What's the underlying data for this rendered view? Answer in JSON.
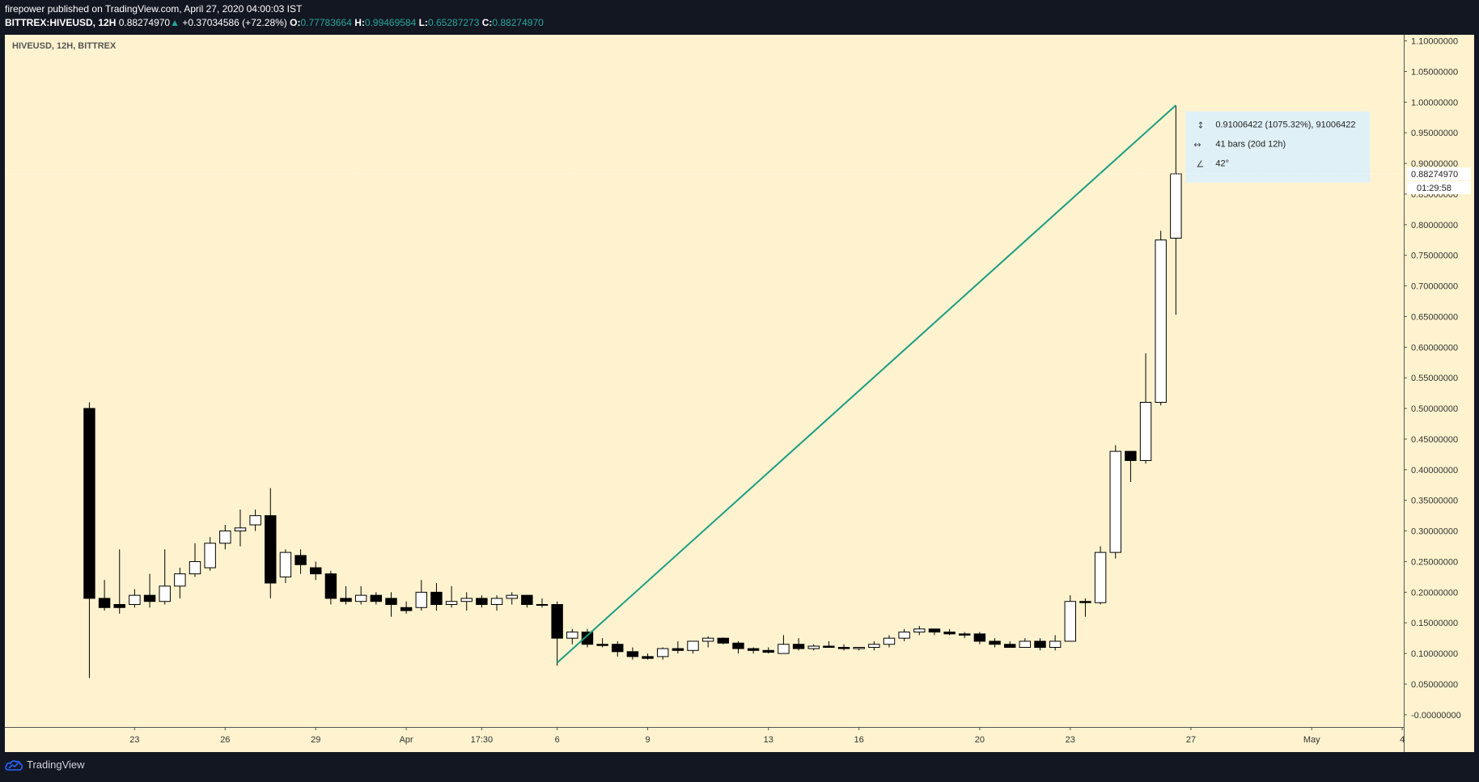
{
  "header": {
    "publisher_line": "firepower published on TradingView.com, April 27, 2020 04:00:03 IST",
    "symbol": "BITTREX:HIVEUSD, 12H",
    "last": "0.88274970",
    "change": "+0.37034586 (+72.28%)",
    "o_label": "O:",
    "o_value": "0.77783664",
    "h_label": "H:",
    "h_value": "0.99469584",
    "l_label": "L:",
    "l_value": "0.65287273",
    "c_label": "C:",
    "c_value": "0.88274970"
  },
  "chart_data": {
    "type": "candlestick",
    "title": "HIVEUSD, 12H, BITTREX",
    "ylim": [
      -0.02,
      1.11
    ],
    "y_ticks": [
      "1.10000000",
      "1.05000000",
      "1.00000000",
      "0.95000000",
      "0.90000000",
      "0.85000000",
      "0.80000000",
      "0.75000000",
      "0.70000000",
      "0.65000000",
      "0.60000000",
      "0.55000000",
      "0.50000000",
      "0.45000000",
      "0.40000000",
      "0.35000000",
      "0.30000000",
      "0.25000000",
      "0.20000000",
      "0.15000000",
      "0.10000000",
      "0.05000000",
      "-0.00000000"
    ],
    "y_tick_values": [
      1.1,
      1.05,
      1.0,
      0.95,
      0.9,
      0.85,
      0.8,
      0.75,
      0.7,
      0.65,
      0.6,
      0.55,
      0.5,
      0.45,
      0.4,
      0.35,
      0.3,
      0.25,
      0.2,
      0.15,
      0.1,
      0.05,
      0.0
    ],
    "x_ticks": [
      {
        "label": "23",
        "bar": 3
      },
      {
        "label": "26",
        "bar": 9
      },
      {
        "label": "29",
        "bar": 15
      },
      {
        "label": "Apr",
        "bar": 21
      },
      {
        "label": "17:30",
        "bar": 26
      },
      {
        "label": "6",
        "bar": 31
      },
      {
        "label": "9",
        "bar": 37
      },
      {
        "label": "13",
        "bar": 45
      },
      {
        "label": "16",
        "bar": 51
      },
      {
        "label": "20",
        "bar": 59
      },
      {
        "label": "23",
        "bar": 65
      },
      {
        "label": "27",
        "bar": 73
      },
      {
        "label": "May",
        "bar": 81
      },
      {
        "label": "4",
        "bar": 87
      }
    ],
    "bar_range": [
      -5.6,
      87.1
    ],
    "candles": [
      [
        0.5,
        0.51,
        0.06,
        0.19
      ],
      [
        0.19,
        0.22,
        0.17,
        0.175
      ],
      [
        0.18,
        0.27,
        0.165,
        0.175
      ],
      [
        0.18,
        0.205,
        0.175,
        0.195
      ],
      [
        0.195,
        0.23,
        0.175,
        0.185
      ],
      [
        0.185,
        0.27,
        0.18,
        0.21
      ],
      [
        0.21,
        0.24,
        0.19,
        0.23
      ],
      [
        0.23,
        0.28,
        0.225,
        0.25
      ],
      [
        0.24,
        0.29,
        0.235,
        0.28
      ],
      [
        0.28,
        0.31,
        0.27,
        0.3
      ],
      [
        0.3,
        0.335,
        0.275,
        0.305
      ],
      [
        0.31,
        0.335,
        0.3,
        0.325
      ],
      [
        0.325,
        0.37,
        0.19,
        0.215
      ],
      [
        0.225,
        0.27,
        0.215,
        0.265
      ],
      [
        0.26,
        0.27,
        0.23,
        0.245
      ],
      [
        0.24,
        0.25,
        0.22,
        0.23
      ],
      [
        0.23,
        0.235,
        0.18,
        0.19
      ],
      [
        0.19,
        0.21,
        0.18,
        0.185
      ],
      [
        0.185,
        0.21,
        0.18,
        0.195
      ],
      [
        0.195,
        0.2,
        0.18,
        0.185
      ],
      [
        0.19,
        0.2,
        0.16,
        0.18
      ],
      [
        0.175,
        0.185,
        0.165,
        0.17
      ],
      [
        0.175,
        0.22,
        0.17,
        0.2
      ],
      [
        0.2,
        0.215,
        0.17,
        0.18
      ],
      [
        0.18,
        0.21,
        0.175,
        0.185
      ],
      [
        0.185,
        0.2,
        0.17,
        0.19
      ],
      [
        0.19,
        0.195,
        0.175,
        0.18
      ],
      [
        0.18,
        0.195,
        0.17,
        0.19
      ],
      [
        0.19,
        0.2,
        0.18,
        0.195
      ],
      [
        0.195,
        0.195,
        0.175,
        0.18
      ],
      [
        0.18,
        0.19,
        0.175,
        0.18
      ],
      [
        0.18,
        0.185,
        0.08,
        0.125
      ],
      [
        0.125,
        0.14,
        0.115,
        0.135
      ],
      [
        0.135,
        0.14,
        0.11,
        0.115
      ],
      [
        0.115,
        0.125,
        0.11,
        0.113
      ],
      [
        0.115,
        0.12,
        0.095,
        0.103
      ],
      [
        0.103,
        0.11,
        0.09,
        0.095
      ],
      [
        0.095,
        0.1,
        0.09,
        0.092
      ],
      [
        0.095,
        0.11,
        0.09,
        0.108
      ],
      [
        0.108,
        0.12,
        0.1,
        0.105
      ],
      [
        0.105,
        0.12,
        0.1,
        0.12
      ],
      [
        0.12,
        0.128,
        0.11,
        0.125
      ],
      [
        0.125,
        0.126,
        0.115,
        0.117
      ],
      [
        0.117,
        0.12,
        0.1,
        0.108
      ],
      [
        0.108,
        0.11,
        0.1,
        0.105
      ],
      [
        0.105,
        0.11,
        0.1,
        0.102
      ],
      [
        0.1,
        0.13,
        0.1,
        0.115
      ],
      [
        0.115,
        0.125,
        0.105,
        0.108
      ],
      [
        0.108,
        0.115,
        0.105,
        0.112
      ],
      [
        0.112,
        0.12,
        0.11,
        0.11
      ],
      [
        0.11,
        0.115,
        0.105,
        0.108
      ],
      [
        0.108,
        0.11,
        0.105,
        0.11
      ],
      [
        0.11,
        0.12,
        0.105,
        0.115
      ],
      [
        0.115,
        0.13,
        0.11,
        0.125
      ],
      [
        0.125,
        0.14,
        0.12,
        0.135
      ],
      [
        0.135,
        0.145,
        0.13,
        0.14
      ],
      [
        0.14,
        0.14,
        0.13,
        0.135
      ],
      [
        0.135,
        0.14,
        0.13,
        0.132
      ],
      [
        0.132,
        0.135,
        0.125,
        0.13
      ],
      [
        0.132,
        0.135,
        0.115,
        0.12
      ],
      [
        0.12,
        0.125,
        0.11,
        0.115
      ],
      [
        0.115,
        0.12,
        0.11,
        0.11
      ],
      [
        0.11,
        0.125,
        0.11,
        0.12
      ],
      [
        0.12,
        0.125,
        0.105,
        0.11
      ],
      [
        0.11,
        0.13,
        0.105,
        0.12
      ],
      [
        0.12,
        0.195,
        0.12,
        0.185
      ],
      [
        0.185,
        0.19,
        0.16,
        0.183
      ],
      [
        0.183,
        0.275,
        0.18,
        0.265
      ],
      [
        0.265,
        0.44,
        0.255,
        0.43
      ],
      [
        0.43,
        0.43,
        0.38,
        0.415
      ],
      [
        0.415,
        0.59,
        0.41,
        0.51
      ],
      [
        0.51,
        0.79,
        0.505,
        0.775
      ],
      [
        0.778,
        0.995,
        0.653,
        0.883
      ]
    ],
    "trendline": {
      "from_bar": 31,
      "from_price": 0.085,
      "to_bar": 72,
      "to_price": 0.995
    },
    "measure_box": {
      "line1": "0.91006422 (1075.32%), 91006422",
      "line2": "41 bars (20d 12h)",
      "line3": "42°"
    },
    "price_label": "0.88274970",
    "timer_label": "01:29:58",
    "colors": {
      "background": "#fff3cf",
      "candle_up_fill": "#ffffff",
      "candle_down_fill": "#000000",
      "candle_border": "#000000",
      "trendline": "#1e9c82",
      "measure_box": "#dff0f7"
    }
  },
  "footer": {
    "brand": "TradingView"
  }
}
